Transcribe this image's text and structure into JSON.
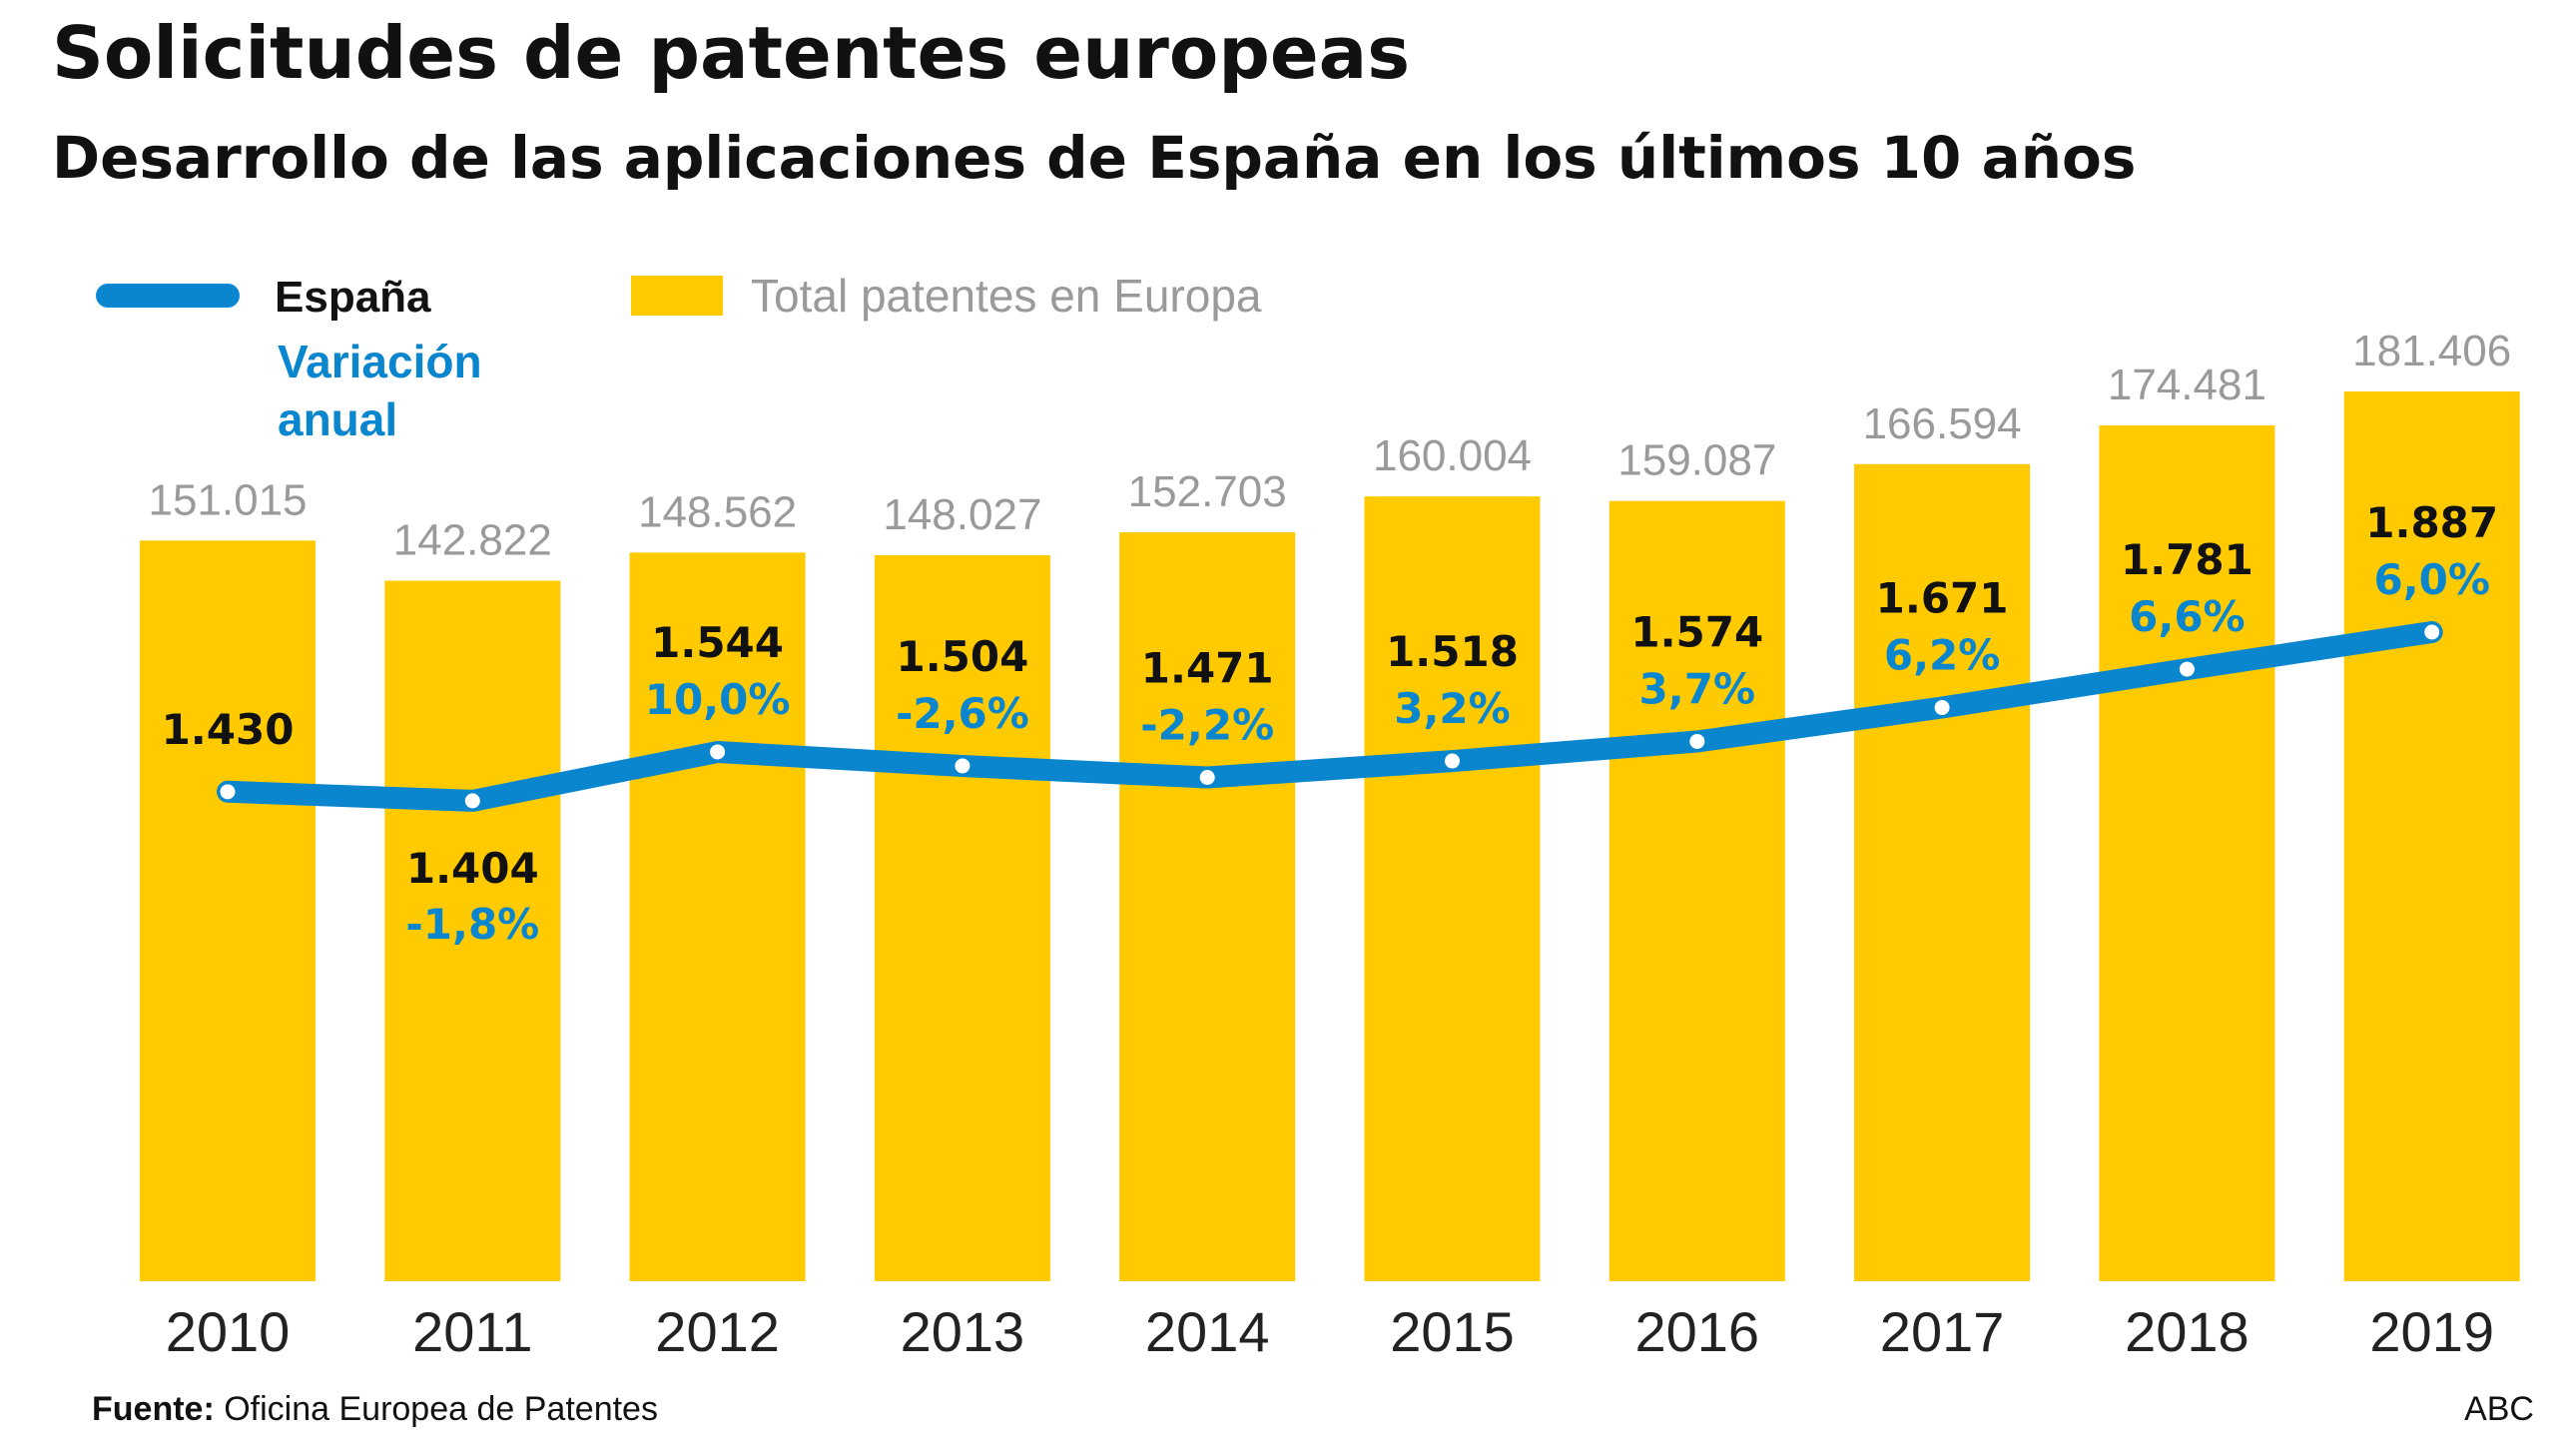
{
  "header": {
    "title": "Solicitudes de patentes europeas",
    "subtitle": "Desarrollo de las aplicaciones de España en los últimos 10 años"
  },
  "legend": {
    "line_label": "España",
    "bar_label": "Total patentes en Europa",
    "variation_line1": "Variación",
    "variation_line2": "anual"
  },
  "footer": {
    "source_prefix": "Fuente:",
    "source_text": " Oficina Europea de Patentes",
    "credit": "ABC"
  },
  "colors": {
    "bar": "#ffca00",
    "line": "#0a86cf",
    "total_text": "#9a9a9a",
    "pct_text": "#0a86cf"
  },
  "chart_data": {
    "type": "bar",
    "title": "Solicitudes de patentes europeas",
    "subtitle": "Desarrollo de las aplicaciones de España en los últimos 10 años",
    "categories": [
      "2010",
      "2011",
      "2012",
      "2013",
      "2014",
      "2015",
      "2016",
      "2017",
      "2018",
      "2019"
    ],
    "series": [
      {
        "name": "Total patentes en Europa",
        "type": "bar",
        "values": [
          151015,
          142822,
          148562,
          148027,
          152703,
          160004,
          159087,
          166594,
          174481,
          181406
        ],
        "labels": [
          "151.015",
          "142.822",
          "148.562",
          "148.027",
          "152.703",
          "160.004",
          "159.087",
          "166.594",
          "174.481",
          "181.406"
        ]
      },
      {
        "name": "España",
        "type": "line",
        "values": [
          1430,
          1404,
          1544,
          1504,
          1471,
          1518,
          1574,
          1671,
          1781,
          1887
        ],
        "labels": [
          "1.430",
          "1.404",
          "1.544",
          "1.504",
          "1.471",
          "1.518",
          "1.574",
          "1.671",
          "1.781",
          "1.887"
        ]
      }
    ],
    "variacion_anual": [
      "",
      "-1,8%",
      "10,0%",
      "-2,6%",
      "-2,2%",
      "3,2%",
      "3,7%",
      "6,2%",
      "6,6%",
      "6,0%"
    ],
    "legend_position": "top-left",
    "grid": false
  }
}
